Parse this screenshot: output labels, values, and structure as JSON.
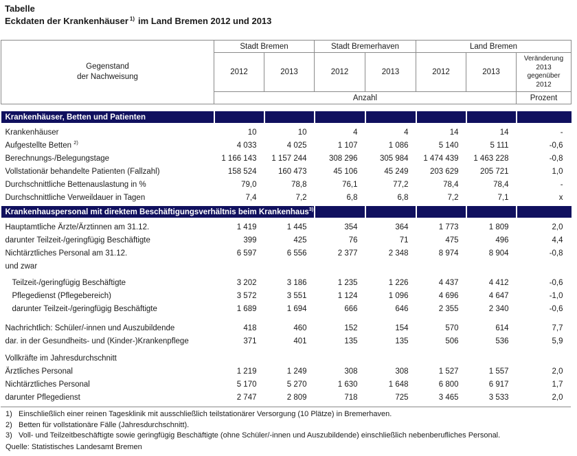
{
  "colors": {
    "band_bg": "#10105e",
    "band_text": "#ffffff",
    "border": "#8a8a8a"
  },
  "title": {
    "kicker": "Tabelle",
    "main": "Eckdaten der Krankenhäuser",
    "sup": "1)",
    "rest": "im Land Bremen 2012 und 2013"
  },
  "header": {
    "stub": "Gegenstand\nder Nachweisung",
    "groups": [
      "Stadt Bremen",
      "Stadt Bremerhaven",
      "Land Bremen"
    ],
    "years": [
      "2012",
      "2013",
      "2012",
      "2013",
      "2012",
      "2013"
    ],
    "change_label": "Veränderung\n2013\ngegenüber\n2012",
    "unit_number": "Anzahl",
    "unit_percent": "Prozent"
  },
  "sections": [
    {
      "title": "Krankenhäuser, Betten und Patienten",
      "title_sup": "",
      "title_colspan": 1,
      "gap_before": 10,
      "rows": [
        {
          "label": "Krankenhäuser",
          "sup": "",
          "indent": false,
          "gap": 0,
          "values": [
            "10",
            "10",
            "4",
            "4",
            "14",
            "14",
            "-"
          ]
        },
        {
          "label": "Aufgestellte Betten ",
          "sup": "2)",
          "indent": false,
          "gap": 0,
          "values": [
            "4 033",
            "4 025",
            "1 107",
            "1 086",
            "5 140",
            "5 111",
            "-0,6"
          ]
        },
        {
          "label": "Berechnungs-/Belegungstage",
          "sup": "",
          "indent": false,
          "gap": 0,
          "values": [
            "1 166 143",
            "1 157 244",
            "308 296",
            "305 984",
            "1 474 439",
            "1 463 228",
            "-0,8"
          ]
        },
        {
          "label": "Vollstationär behandelte Patienten (Fallzahl)",
          "sup": "",
          "indent": false,
          "gap": 0,
          "values": [
            "158 524",
            "160 473",
            "45 106",
            "45 249",
            "203 629",
            "205 721",
            "1,0"
          ]
        },
        {
          "label": "Durchschnittliche Bettenauslastung in %",
          "sup": "",
          "indent": false,
          "gap": 0,
          "values": [
            "79,0",
            "78,8",
            "76,1",
            "77,2",
            "78,4",
            "78,4",
            "-"
          ]
        },
        {
          "label": "Durchschnittliche Verweildauer in Tagen",
          "sup": "",
          "indent": false,
          "gap": 0,
          "values": [
            "7,4",
            "7,2",
            "6,8",
            "6,8",
            "7,2",
            "7,1",
            "x"
          ]
        }
      ]
    },
    {
      "title": "Krankenhauspersonal mit direktem Beschäftigungsverhältnis beim Krankenhaus",
      "title_sup": "3)",
      "title_colspan": 3,
      "gap_before": 3,
      "rows": [
        {
          "label": "Hauptamtliche Ärzte/Ärztinnen am 31.12.",
          "sup": "",
          "indent": false,
          "gap": 0,
          "values": [
            "1 419",
            "1 445",
            "354",
            "364",
            "1 773",
            "1 809",
            "2,0"
          ]
        },
        {
          "label": "darunter Teilzeit-/geringfügig Beschäftigte",
          "sup": "",
          "indent": false,
          "gap": 0,
          "values": [
            "399",
            "425",
            "76",
            "71",
            "475",
            "496",
            "4,4"
          ]
        },
        {
          "label": "Nichtärztliches Personal am 31.12.",
          "sup": "",
          "indent": false,
          "gap": 0,
          "values": [
            "6 597",
            "6 556",
            "2 377",
            "2 348",
            "8 974",
            "8 904",
            "-0,8"
          ]
        },
        {
          "label": "und zwar",
          "sup": "",
          "indent": false,
          "gap": 0,
          "values": [
            "",
            "",
            "",
            "",
            "",
            "",
            ""
          ]
        },
        {
          "label": "Teilzeit-/geringfügig Beschäftigte",
          "sup": "",
          "indent": true,
          "gap": 5,
          "values": [
            "3 202",
            "3 186",
            "1 235",
            "1 226",
            "4 437",
            "4 412",
            "-0,6"
          ]
        },
        {
          "label": "Pflegedienst (Pflegebereich)",
          "sup": "",
          "indent": true,
          "gap": 0,
          "values": [
            "3 572",
            "3 551",
            "1 124",
            "1 096",
            "4 696",
            "4 647",
            "-1,0"
          ]
        },
        {
          "label": "darunter Teilzeit-/geringfügig Beschäftigte",
          "sup": "",
          "indent": true,
          "gap": 0,
          "values": [
            "1 689",
            "1 694",
            "666",
            "646",
            "2 355",
            "2 340",
            "-0,6"
          ]
        },
        {
          "label": "Nachrichtlich: Schüler/-innen und Auszubildende",
          "sup": "",
          "indent": false,
          "gap": 9,
          "values": [
            "418",
            "460",
            "152",
            "154",
            "570",
            "614",
            "7,7"
          ]
        },
        {
          "label": "dar. in der Gesundheits- und (Kinder-)Krankenpflege",
          "sup": "",
          "indent": false,
          "gap": 0,
          "values": [
            "371",
            "401",
            "135",
            "135",
            "506",
            "536",
            "5,9"
          ]
        },
        {
          "label": "Vollkräfte im Jahresdurchschnitt",
          "sup": "",
          "indent": false,
          "gap": 6,
          "values": [
            "",
            "",
            "",
            "",
            "",
            "",
            ""
          ]
        },
        {
          "label": "Ärztliches Personal",
          "sup": "",
          "indent": false,
          "gap": 0,
          "values": [
            "1 219",
            "1 249",
            "308",
            "308",
            "1 527",
            "1 557",
            "2,0"
          ]
        },
        {
          "label": "Nichtärztliches Personal",
          "sup": "",
          "indent": false,
          "gap": 0,
          "values": [
            "5 170",
            "5 270",
            "1 630",
            "1 648",
            "6 800",
            "6 917",
            "1,7"
          ]
        },
        {
          "label": "darunter Pflegedienst",
          "sup": "",
          "indent": false,
          "gap": 0,
          "values": [
            "2 747",
            "2 809",
            "718",
            "725",
            "3 465",
            "3 533",
            "2,0"
          ]
        }
      ]
    }
  ],
  "footnotes": {
    "items": [
      {
        "marker": "1)",
        "text": "Einschließlich einer reinen Tagesklinik mit ausschließlich teilstationärer Versorgung (10 Plätze) in Bremerhaven."
      },
      {
        "marker": "2)",
        "text": "Betten für vollstationäre Fälle (Jahresdurchschnitt)."
      },
      {
        "marker": "3)",
        "text": "Voll- und Teilzeitbeschäftigte sowie geringfügig Beschäftigte (ohne Schüler/-innen und Auszubildende) einschließlich nebenberufliches Personal."
      }
    ],
    "source": "Quelle: Statistisches Landesamt Bremen"
  }
}
